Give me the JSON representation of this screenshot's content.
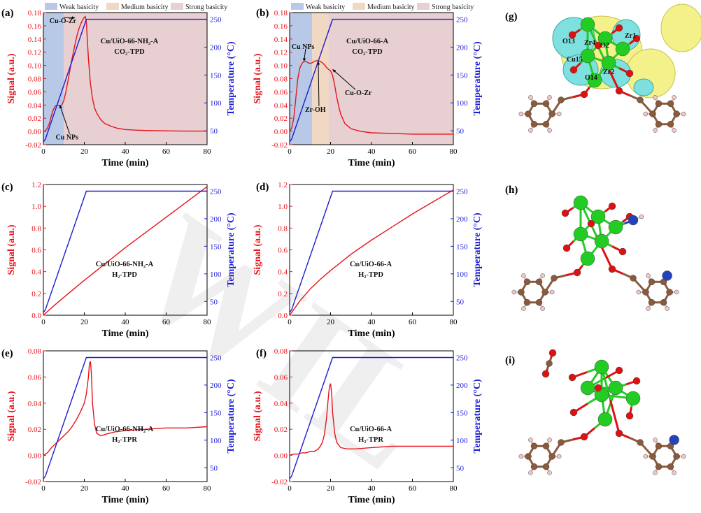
{
  "panels_text": {
    "g": "(g)",
    "h": "(h)",
    "i": "(i)"
  },
  "structure_g_labels": [
    "O13",
    "Zr4",
    "O2",
    "Zr1",
    "Cu15",
    "O14",
    "Zr2"
  ],
  "watermark": "WIL",
  "colors": {
    "signal": "#e8141c",
    "temperature": "#1c1cd6",
    "weak": "#b7c9e6",
    "medium": "#f1d8c2",
    "strong": "#e8cfd1",
    "zr_atom": "#22cc22",
    "o_atom": "#dd1111",
    "c_atom": "#8a5a3c",
    "n_atom": "#2244bb",
    "h_atom": "#f0c8c8",
    "iso_yellow": "#f4f08a",
    "iso_cyan": "#7fe0e0"
  },
  "chart_data": [
    {
      "id": "a",
      "label": "(a)",
      "type": "line",
      "xlabel": "Time (min)",
      "ylabel": "Signal (a.u.)",
      "y2label": "Temperature (°C)",
      "xlim": [
        0,
        80
      ],
      "ylim": [
        -0.02,
        0.18
      ],
      "y2lim": [
        25,
        262
      ],
      "xticks": [
        0,
        20,
        40,
        60,
        80
      ],
      "yticks": [
        -0.02,
        0.0,
        0.02,
        0.04,
        0.06,
        0.08,
        0.1,
        0.12,
        0.14,
        0.16,
        0.18
      ],
      "ytick_labels": [
        "-0.02",
        "0.00",
        "0.02",
        "0.04",
        "0.06",
        "0.08",
        "0.10",
        "0.12",
        "0.14",
        "0.16",
        "0.18"
      ],
      "y2ticks": [
        50,
        100,
        150,
        200,
        250
      ],
      "regions": [
        {
          "name": "Weak basicity",
          "from": 0,
          "to": 10,
          "kind": "weak"
        },
        {
          "name": "Strong basicity",
          "from": 10,
          "to": 80,
          "kind": "strong"
        }
      ],
      "legend": [
        {
          "name": "Weak basicity",
          "kind": "weak"
        },
        {
          "name": "Medium basicity",
          "kind": "medium"
        },
        {
          "name": "Strong basicity",
          "kind": "strong"
        }
      ],
      "sample_text": [
        "Cu/UiO-66-NH₂-A",
        "CO₂-TPD"
      ],
      "annotations": [
        {
          "text": "Cu-O-Zr",
          "x": 3,
          "y": 0.164,
          "ax": 15.5,
          "ay": 0.172
        },
        {
          "text": "Cu NPs",
          "x": 6,
          "y": -0.012,
          "ax": 8,
          "ay": 0.04
        }
      ],
      "series": [
        {
          "name": "Signal",
          "axis": "left",
          "color": "signal",
          "x": [
            0,
            1,
            2,
            3,
            4,
            5,
            6,
            7,
            8,
            9,
            10,
            11,
            12,
            13,
            14,
            15,
            16,
            17,
            18,
            19,
            20,
            20.5,
            21,
            22,
            23,
            24,
            25,
            26,
            28,
            30,
            33,
            36,
            40,
            45,
            50,
            60,
            70,
            80
          ],
          "y": [
            0.0,
            0.001,
            0.005,
            0.013,
            0.025,
            0.034,
            0.039,
            0.04,
            0.039,
            0.04,
            0.047,
            0.06,
            0.076,
            0.093,
            0.11,
            0.125,
            0.14,
            0.152,
            0.161,
            0.168,
            0.173,
            0.174,
            0.166,
            0.11,
            0.072,
            0.05,
            0.036,
            0.028,
            0.018,
            0.012,
            0.008,
            0.005,
            0.003,
            0.002,
            0.0015,
            0.001,
            0.0005,
            0.0005
          ]
        },
        {
          "name": "Temperature",
          "axis": "right",
          "color": "temperature",
          "x": [
            0,
            1,
            21,
            80
          ],
          "y": [
            30,
            35,
            250,
            250
          ]
        }
      ]
    },
    {
      "id": "b",
      "label": "(b)",
      "type": "line",
      "xlabel": "Time (min)",
      "ylabel": "Signal (a.u.)",
      "y2label": "Temperature (°C)",
      "xlim": [
        0,
        80
      ],
      "ylim": [
        -0.02,
        0.18
      ],
      "y2lim": [
        25,
        262
      ],
      "xticks": [
        0,
        20,
        40,
        60,
        80
      ],
      "yticks": [
        -0.02,
        0.0,
        0.02,
        0.04,
        0.06,
        0.08,
        0.1,
        0.12,
        0.14,
        0.16,
        0.18
      ],
      "ytick_labels": [
        "-0.02",
        "0.00",
        "0.02",
        "0.04",
        "0.06",
        "0.08",
        "0.10",
        "0.12",
        "0.14",
        "0.16",
        "0.18"
      ],
      "y2ticks": [
        50,
        100,
        150,
        200,
        250
      ],
      "regions": [
        {
          "name": "Weak basicity",
          "from": 0,
          "to": 11,
          "kind": "weak"
        },
        {
          "name": "Medium basicity",
          "from": 11,
          "to": 19,
          "kind": "medium"
        },
        {
          "name": "Strong basicity",
          "from": 19,
          "to": 80,
          "kind": "strong"
        }
      ],
      "legend": [
        {
          "name": "Weak basicity",
          "kind": "weak"
        },
        {
          "name": "Medium basicity",
          "kind": "medium"
        },
        {
          "name": "Strong basicity",
          "kind": "strong"
        }
      ],
      "sample_text": [
        "Cu/UiO-66-A",
        "CO₂-TPD"
      ],
      "annotations": [
        {
          "text": "Cu NPs",
          "x": 1,
          "y": 0.125,
          "ax": 7,
          "ay": 0.106
        },
        {
          "text": "Zr-OH",
          "x": 7.5,
          "y": 0.03,
          "ax": 14,
          "ay": 0.106
        },
        {
          "text": "Cu-O-Zr",
          "x": 27,
          "y": 0.055,
          "ax": 21,
          "ay": 0.094
        }
      ],
      "series": [
        {
          "name": "Signal",
          "axis": "left",
          "color": "signal",
          "x": [
            0,
            1,
            2,
            3,
            4,
            5,
            6,
            7,
            8,
            9,
            10,
            11,
            12,
            13,
            14,
            15,
            16,
            17,
            18,
            19,
            20,
            21,
            22,
            23,
            24,
            25,
            27,
            30,
            35,
            40,
            50,
            60,
            70,
            80
          ],
          "y": [
            0.0,
            0.005,
            0.02,
            0.05,
            0.08,
            0.096,
            0.103,
            0.106,
            0.106,
            0.104,
            0.103,
            0.104,
            0.106,
            0.107,
            0.107,
            0.106,
            0.104,
            0.101,
            0.097,
            0.094,
            0.092,
            0.085,
            0.07,
            0.052,
            0.038,
            0.026,
            0.012,
            0.004,
            0.0,
            -0.002,
            -0.003,
            -0.004,
            -0.004,
            -0.004
          ]
        },
        {
          "name": "Temperature",
          "axis": "right",
          "color": "temperature",
          "x": [
            0,
            1,
            21,
            80
          ],
          "y": [
            30,
            35,
            250,
            250
          ]
        }
      ]
    },
    {
      "id": "c",
      "label": "(c)",
      "type": "line",
      "xlabel": "Time (min)",
      "ylabel": "Signal (a.u.)",
      "y2label": "Temperature (°C)",
      "xlim": [
        0,
        80
      ],
      "ylim": [
        0,
        1.2
      ],
      "y2lim": [
        25,
        262
      ],
      "xticks": [
        0,
        20,
        40,
        60,
        80
      ],
      "yticks": [
        0,
        0.2,
        0.4,
        0.6,
        0.8,
        1.0,
        1.2
      ],
      "ytick_labels": [
        "0.0",
        "0.2",
        "0.4",
        "0.6",
        "0.8",
        "1.0",
        "1.2"
      ],
      "y2ticks": [
        50,
        100,
        150,
        200,
        250
      ],
      "regions": [],
      "legend": [],
      "sample_text": [
        "Cu/UiO-66-NH₂-A",
        "H₂-TPD"
      ],
      "annotations": [],
      "series": [
        {
          "name": "Signal",
          "axis": "left",
          "color": "signal",
          "x": [
            0,
            5,
            10,
            20,
            30,
            40,
            50,
            60,
            70,
            80
          ],
          "y": [
            0.0,
            0.085,
            0.165,
            0.32,
            0.47,
            0.62,
            0.76,
            0.9,
            1.04,
            1.18
          ]
        },
        {
          "name": "Temperature",
          "axis": "right",
          "color": "temperature",
          "x": [
            0,
            1,
            21,
            80
          ],
          "y": [
            30,
            35,
            250,
            250
          ]
        }
      ]
    },
    {
      "id": "d",
      "label": "(d)",
      "type": "line",
      "xlabel": "Time (min)",
      "ylabel": "Signal (a.u.)",
      "y2label": "Temperature (°C)",
      "xlim": [
        0,
        80
      ],
      "ylim": [
        0,
        1.2
      ],
      "y2lim": [
        25,
        262
      ],
      "xticks": [
        0,
        20,
        40,
        60,
        80
      ],
      "yticks": [
        0,
        0.2,
        0.4,
        0.6,
        0.8,
        1.0,
        1.2
      ],
      "ytick_labels": [
        "0.0",
        "0.2",
        "0.4",
        "0.6",
        "0.8",
        "1.0",
        "1.2"
      ],
      "y2ticks": [
        50,
        100,
        150,
        200,
        250
      ],
      "regions": [],
      "legend": [],
      "sample_text": [
        "Cu/UiO-66-A",
        "H₂-TPD"
      ],
      "annotations": [],
      "series": [
        {
          "name": "Signal",
          "axis": "left",
          "color": "signal",
          "x": [
            0,
            5,
            10,
            15,
            20,
            30,
            40,
            50,
            60,
            70,
            80
          ],
          "y": [
            0.0,
            0.13,
            0.24,
            0.33,
            0.41,
            0.56,
            0.69,
            0.81,
            0.93,
            1.04,
            1.15
          ]
        },
        {
          "name": "Temperature",
          "axis": "right",
          "color": "temperature",
          "x": [
            0,
            1,
            21,
            80
          ],
          "y": [
            30,
            35,
            250,
            250
          ]
        }
      ]
    },
    {
      "id": "e",
      "label": "(e)",
      "type": "line",
      "xlabel": "Time (min)",
      "ylabel": "Signal (a.u.)",
      "y2label": "Temperature (°C)",
      "xlim": [
        0,
        80
      ],
      "ylim": [
        -0.02,
        0.08
      ],
      "y2lim": [
        25,
        262
      ],
      "xticks": [
        0,
        20,
        40,
        60,
        80
      ],
      "yticks": [
        -0.02,
        0.0,
        0.02,
        0.04,
        0.06,
        0.08
      ],
      "ytick_labels": [
        "-0.02",
        "0.00",
        "0.02",
        "0.04",
        "0.06",
        "0.08"
      ],
      "y2ticks": [
        50,
        100,
        150,
        200,
        250
      ],
      "regions": [],
      "legend": [],
      "sample_text": [
        "Cu/UiO-66-NH₂-A",
        "H₂-TPR"
      ],
      "annotations": [],
      "series": [
        {
          "name": "Signal",
          "axis": "left",
          "color": "signal",
          "x": [
            0,
            2,
            4,
            6,
            8,
            10,
            12,
            14,
            16,
            18,
            20,
            21,
            22,
            22.5,
            23,
            23.5,
            24,
            25,
            26,
            28,
            30,
            35,
            40,
            50,
            60,
            70,
            80
          ],
          "y": [
            0.0,
            0.002,
            0.006,
            0.009,
            0.012,
            0.015,
            0.018,
            0.022,
            0.027,
            0.033,
            0.04,
            0.047,
            0.06,
            0.07,
            0.072,
            0.062,
            0.04,
            0.024,
            0.017,
            0.015,
            0.016,
            0.018,
            0.019,
            0.02,
            0.021,
            0.021,
            0.022
          ]
        },
        {
          "name": "Temperature",
          "axis": "right",
          "color": "temperature",
          "x": [
            0,
            1,
            21,
            80
          ],
          "y": [
            30,
            35,
            250,
            250
          ]
        }
      ]
    },
    {
      "id": "f",
      "label": "(f)",
      "type": "line",
      "xlabel": "Time (min)",
      "ylabel": "Signal (a.u.)",
      "y2label": "Temperature (°C)",
      "xlim": [
        0,
        80
      ],
      "ylim": [
        -0.02,
        0.08
      ],
      "y2lim": [
        25,
        262
      ],
      "xticks": [
        0,
        20,
        40,
        60,
        80
      ],
      "yticks": [
        -0.02,
        0.0,
        0.02,
        0.04,
        0.06,
        0.08
      ],
      "ytick_labels": [
        "-0.02",
        "0.00",
        "0.02",
        "0.04",
        "0.06",
        "0.08"
      ],
      "y2ticks": [
        50,
        100,
        150,
        200,
        250
      ],
      "regions": [],
      "legend": [],
      "sample_text": [
        "Cu/UiO-66-A",
        "H₂-TPR"
      ],
      "annotations": [],
      "series": [
        {
          "name": "Signal",
          "axis": "left",
          "color": "signal",
          "x": [
            0,
            2,
            4,
            6,
            8,
            10,
            12,
            14,
            15,
            16,
            17,
            18,
            19,
            19.5,
            20,
            20.5,
            21,
            22,
            23,
            25,
            28,
            32,
            40,
            50,
            60,
            70,
            80
          ],
          "y": [
            0.0,
            0.001,
            0.001,
            0.002,
            0.002,
            0.003,
            0.003,
            0.005,
            0.007,
            0.01,
            0.016,
            0.028,
            0.046,
            0.053,
            0.055,
            0.048,
            0.033,
            0.017,
            0.01,
            0.006,
            0.005,
            0.005,
            0.006,
            0.007,
            0.007,
            0.007,
            0.007
          ]
        },
        {
          "name": "Temperature",
          "axis": "right",
          "color": "temperature",
          "x": [
            0,
            1,
            21,
            80
          ],
          "y": [
            30,
            35,
            250,
            250
          ]
        }
      ]
    }
  ]
}
